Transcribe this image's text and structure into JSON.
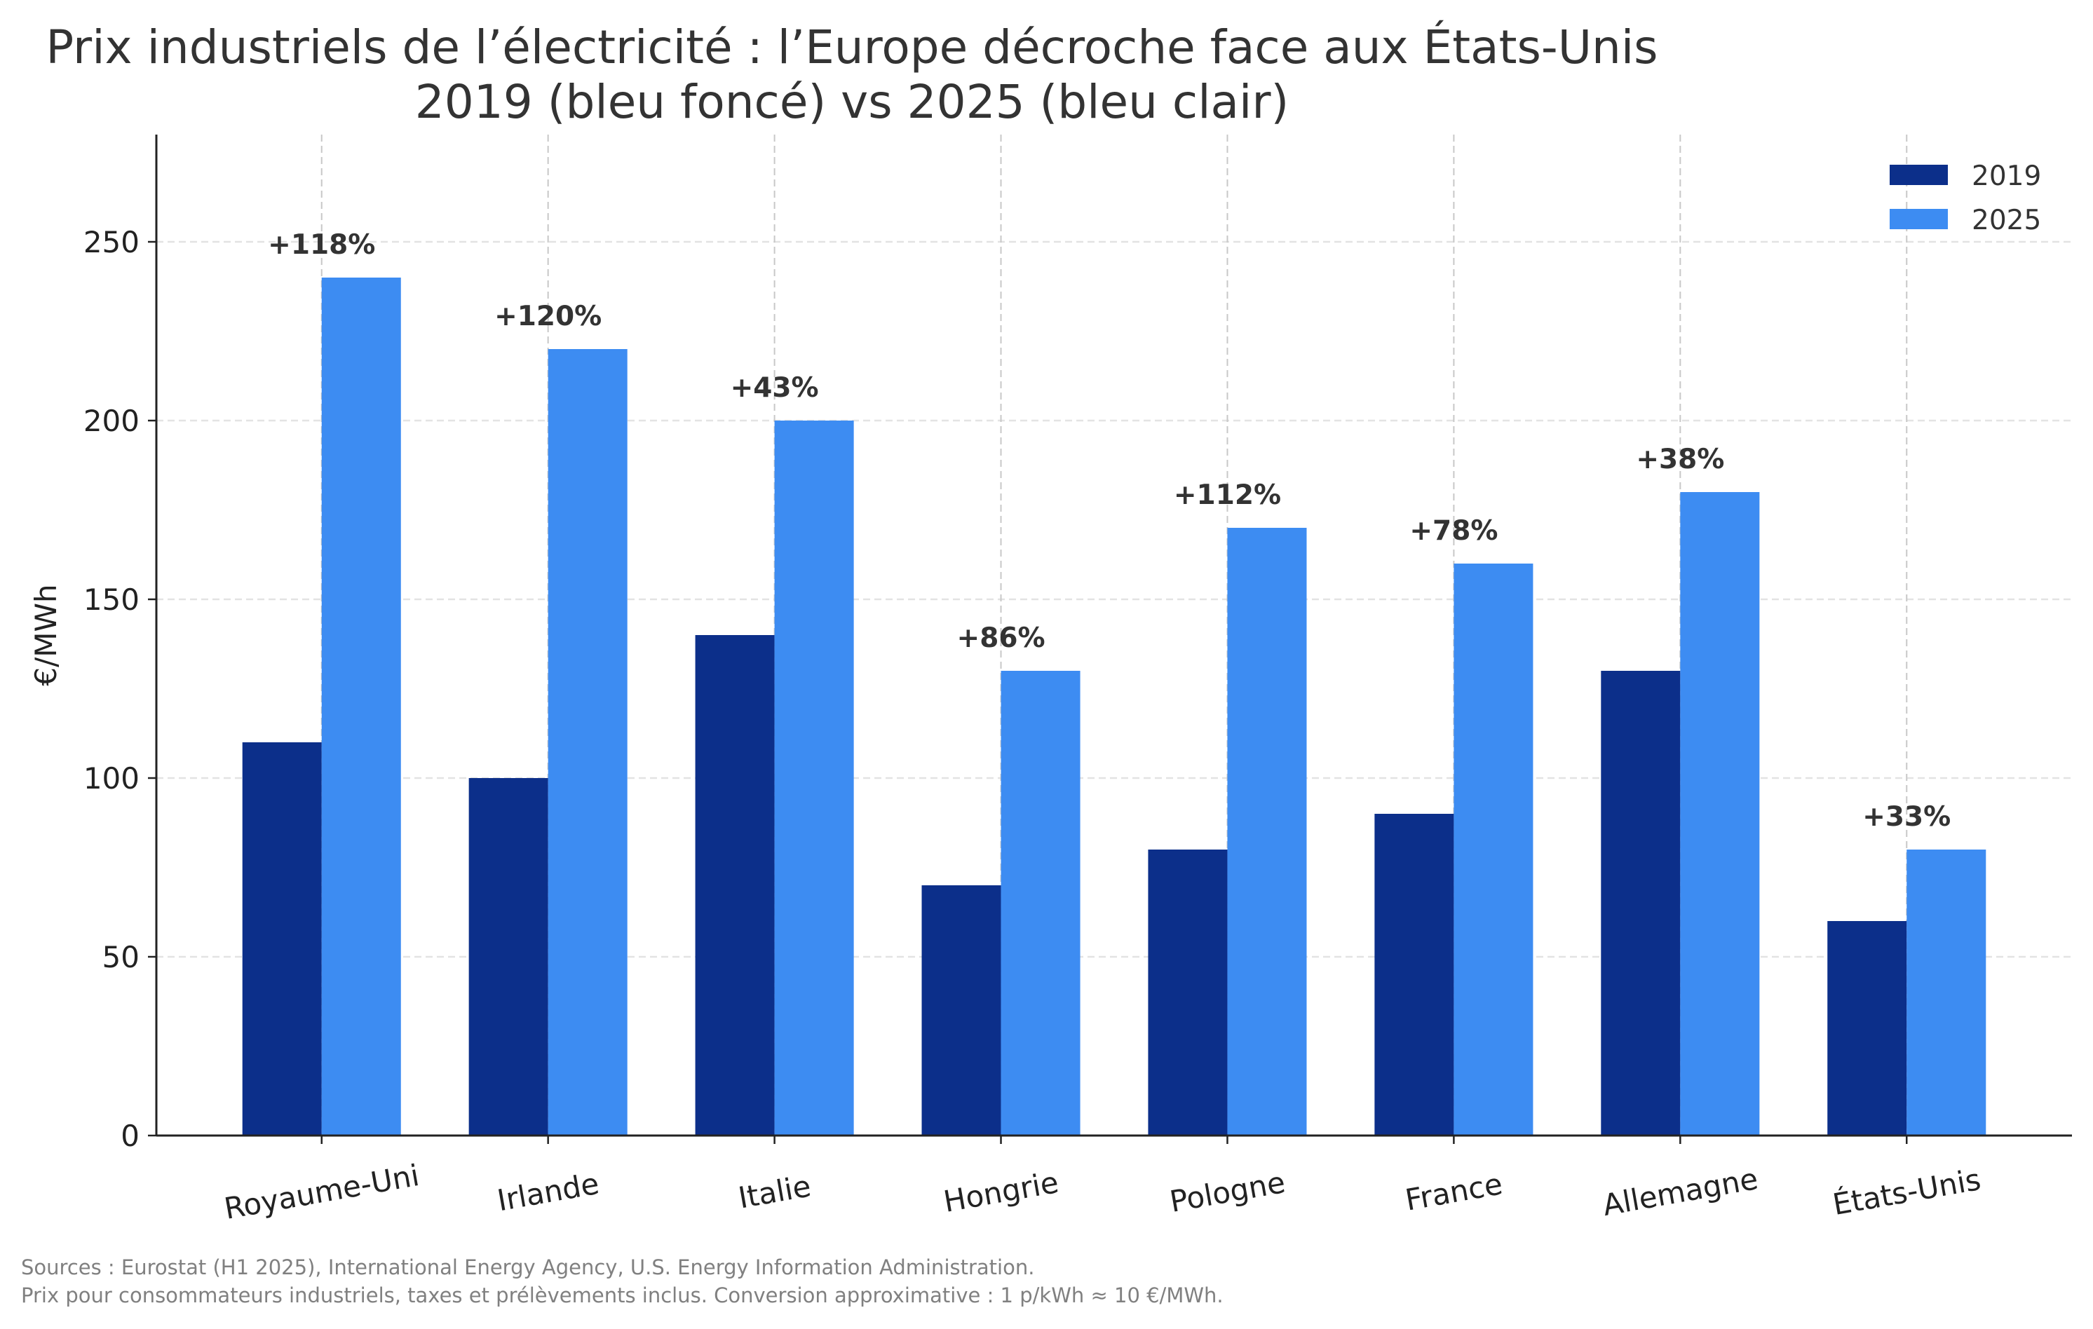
{
  "chart_data": {
    "type": "bar",
    "title": "Prix industriels de l’électricité : l’Europe décroche face aux États-Unis",
    "subtitle": "2019 (bleu foncé) vs 2025 (bleu clair)",
    "xlabel": "",
    "ylabel": "€/MWh",
    "ylim": [
      0,
      280
    ],
    "yticks": [
      0,
      50,
      100,
      150,
      200,
      250
    ],
    "grid": true,
    "legend_position": "top-right",
    "categories": [
      "Royaume-Uni",
      "Irlande",
      "Italie",
      "Hongrie",
      "Pologne",
      "France",
      "Allemagne",
      "États-Unis"
    ],
    "series": [
      {
        "name": "2019",
        "color": "#0c2f8a",
        "values": [
          110,
          100,
          140,
          70,
          80,
          90,
          130,
          60
        ]
      },
      {
        "name": "2025",
        "color": "#3d8cf2",
        "values": [
          240,
          220,
          200,
          130,
          170,
          160,
          180,
          80
        ]
      }
    ],
    "annotations": [
      "+118%",
      "+120%",
      "+43%",
      "+86%",
      "+112%",
      "+78%",
      "+38%",
      "+33%"
    ]
  },
  "footer": {
    "line1": "Sources : Eurostat (H1 2025), International Energy Agency, U.S. Energy Information Administration.",
    "line2": "Prix pour consommateurs industriels, taxes et prélèvements inclus. Conversion approximative : 1 p/kWh ≈ 10 €/MWh."
  }
}
